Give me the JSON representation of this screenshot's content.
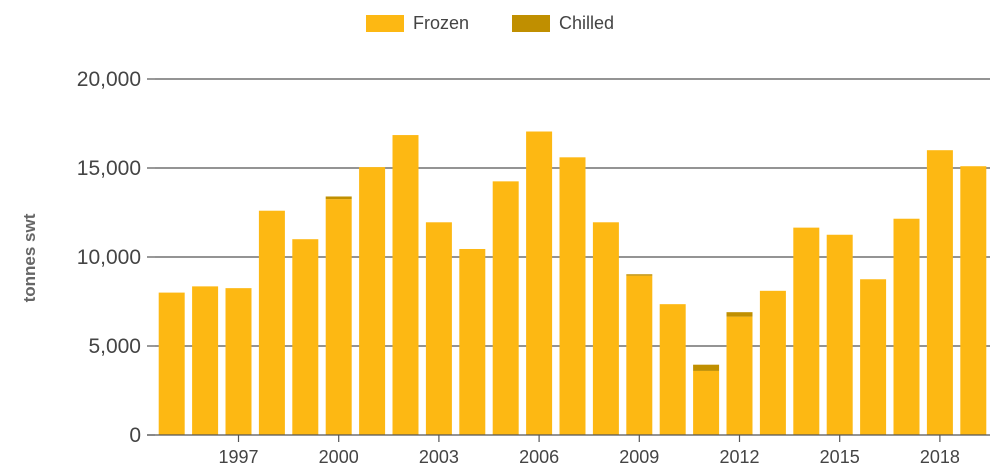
{
  "chart_data": {
    "type": "bar",
    "stacked": true,
    "title": "",
    "xlabel": "",
    "ylabel": "tonnes swt",
    "ylim": [
      0,
      20000
    ],
    "yticks": [
      0,
      5000,
      10000,
      15000,
      20000
    ],
    "ytick_labels": [
      "0",
      "5,000",
      "10,000",
      "15,000",
      "20,000"
    ],
    "xtick_labels": [
      "1997",
      "2000",
      "2003",
      "2006",
      "2009",
      "2012",
      "2015",
      "2018"
    ],
    "grid": "horizontal",
    "legend_position": "top-center",
    "categories": [
      "1995",
      "1996",
      "1997",
      "1998",
      "1999",
      "2000",
      "2001",
      "2002",
      "2003",
      "2004",
      "2005",
      "2006",
      "2007",
      "2008",
      "2009",
      "2010",
      "2011",
      "2012",
      "2013",
      "2014",
      "2015",
      "2016",
      "2017",
      "2018",
      "2019"
    ],
    "series": [
      {
        "name": "Frozen",
        "color": "#FDB813",
        "values": [
          8000,
          8350,
          8250,
          12600,
          11000,
          13250,
          15050,
          16850,
          11950,
          10450,
          14250,
          17050,
          15600,
          11950,
          8950,
          7350,
          3600,
          6650,
          8100,
          11650,
          11250,
          8750,
          12150,
          16000,
          15100
        ]
      },
      {
        "name": "Chilled",
        "color": "#C08F00",
        "values": [
          0,
          0,
          0,
          0,
          0,
          150,
          0,
          0,
          0,
          0,
          0,
          0,
          0,
          0,
          80,
          0,
          350,
          250,
          0,
          0,
          0,
          0,
          0,
          0,
          0
        ]
      }
    ]
  }
}
